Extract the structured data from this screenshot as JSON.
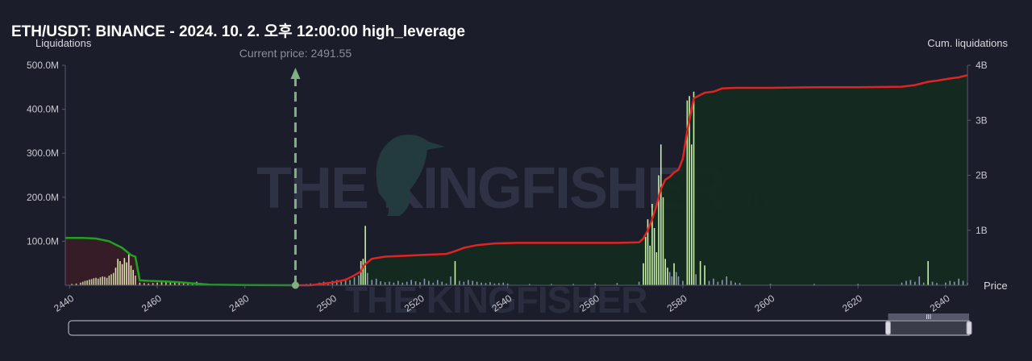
{
  "title": "ETH/USDT: BINANCE - 2024. 10. 2. 오후 12:00:00 high_leverage",
  "watermark": {
    "main": "THE KINGFISHER",
    "suffix": ".IO"
  },
  "chart_data": {
    "type": "bar",
    "ylabel": "Liquidations",
    "y2label": "Cum. liquidations",
    "xlabel": "Price",
    "current_price_label": "Current price: 2491.55",
    "current_price": 2491.55,
    "xlim": [
      2439,
      2645
    ],
    "ylim": [
      0,
      500
    ],
    "y2lim": [
      0,
      4
    ],
    "x_ticks": [
      "2440",
      "2460",
      "2480",
      "2500",
      "2520",
      "2540",
      "2560",
      "2580",
      "2600",
      "2620",
      "2640"
    ],
    "y_ticks": [
      "100.0M",
      "200.0M",
      "300.0M",
      "400.0M",
      "500.0M"
    ],
    "y2_ticks": [
      "1B",
      "2B",
      "3B",
      "4B"
    ],
    "colors": {
      "short_bar": "#c8f0a8",
      "long_bar": "#e3e3b0",
      "faint_bar": "#8e94b0",
      "cum_short": "#e02424",
      "cum_long": "#1fa31f",
      "fill_short": "#142a1f",
      "fill_long": "#3a1d26",
      "price_marker": "#7fb07f"
    },
    "long_bars": [
      [
        2440.5,
        3
      ],
      [
        2441.5,
        4
      ],
      [
        2442.5,
        6
      ],
      [
        2443,
        8
      ],
      [
        2443.5,
        10
      ],
      [
        2444,
        11
      ],
      [
        2444.5,
        13
      ],
      [
        2445,
        14
      ],
      [
        2445.5,
        16
      ],
      [
        2446,
        17
      ],
      [
        2446.5,
        15
      ],
      [
        2447,
        18
      ],
      [
        2447.5,
        20
      ],
      [
        2448,
        19
      ],
      [
        2448.5,
        17
      ],
      [
        2449,
        22
      ],
      [
        2449.5,
        25
      ],
      [
        2450,
        28
      ],
      [
        2450.5,
        40
      ],
      [
        2451,
        60
      ],
      [
        2451.5,
        55
      ],
      [
        2452,
        48
      ],
      [
        2452.5,
        62
      ],
      [
        2453,
        52
      ],
      [
        2453.5,
        70
      ],
      [
        2454,
        45
      ],
      [
        2454.5,
        35
      ],
      [
        2455,
        22
      ],
      [
        2456,
        6
      ],
      [
        2457,
        5
      ],
      [
        2458,
        4
      ],
      [
        2459,
        5
      ],
      [
        2460,
        6
      ],
      [
        2461,
        8
      ],
      [
        2462,
        10
      ],
      [
        2463,
        9
      ],
      [
        2464,
        7
      ],
      [
        2465,
        6
      ],
      [
        2466,
        5
      ],
      [
        2467,
        4
      ],
      [
        2468,
        3
      ],
      [
        2469,
        8
      ],
      [
        2470,
        5
      ]
    ],
    "short_bars": [
      [
        2492,
        2
      ],
      [
        2494,
        3
      ],
      [
        2495,
        4
      ],
      [
        2496,
        3
      ],
      [
        2497,
        6
      ],
      [
        2498,
        8
      ],
      [
        2499,
        5
      ],
      [
        2500,
        10
      ],
      [
        2501,
        12
      ],
      [
        2502,
        8
      ],
      [
        2503,
        15
      ],
      [
        2504,
        12
      ],
      [
        2505,
        18
      ],
      [
        2506,
        22
      ],
      [
        2506.5,
        55
      ],
      [
        2507,
        60
      ],
      [
        2507.5,
        135
      ],
      [
        2508,
        28
      ],
      [
        2509,
        12
      ],
      [
        2510,
        15
      ],
      [
        2511,
        9
      ],
      [
        2512,
        7
      ],
      [
        2513,
        8
      ],
      [
        2514,
        6
      ],
      [
        2515,
        10
      ],
      [
        2516,
        6
      ],
      [
        2517,
        8
      ],
      [
        2518,
        12
      ],
      [
        2519,
        9
      ],
      [
        2520,
        7
      ],
      [
        2521,
        15
      ],
      [
        2522,
        10
      ],
      [
        2523,
        6
      ],
      [
        2524,
        12
      ],
      [
        2525,
        8
      ],
      [
        2526,
        4
      ],
      [
        2527,
        20
      ],
      [
        2528,
        55
      ],
      [
        2529,
        10
      ],
      [
        2530,
        8
      ],
      [
        2531,
        12
      ],
      [
        2532,
        10
      ],
      [
        2533,
        8
      ],
      [
        2534,
        6
      ],
      [
        2535,
        5
      ],
      [
        2536,
        7
      ],
      [
        2537,
        4
      ],
      [
        2538,
        5
      ],
      [
        2539,
        6
      ],
      [
        2540,
        4
      ],
      [
        2545,
        3
      ],
      [
        2550,
        3
      ],
      [
        2555,
        3
      ],
      [
        2560,
        4
      ],
      [
        2565,
        5
      ],
      [
        2570,
        8
      ],
      [
        2571,
        50
      ],
      [
        2571.5,
        110
      ],
      [
        2572,
        150
      ],
      [
        2572.5,
        90
      ],
      [
        2573,
        185
      ],
      [
        2573.5,
        130
      ],
      [
        2574,
        75
      ],
      [
        2574.5,
        250
      ],
      [
        2575,
        320
      ],
      [
        2575.5,
        200
      ],
      [
        2576,
        60
      ],
      [
        2576.5,
        40
      ],
      [
        2577,
        30
      ],
      [
        2577.5,
        20
      ],
      [
        2578,
        50
      ],
      [
        2578.5,
        30
      ],
      [
        2579,
        20
      ],
      [
        2580,
        10
      ],
      [
        2581,
        420
      ],
      [
        2581.5,
        430
      ],
      [
        2582,
        320
      ],
      [
        2582.5,
        440
      ],
      [
        2583,
        25
      ],
      [
        2584,
        55
      ],
      [
        2585,
        45
      ],
      [
        2586,
        10
      ],
      [
        2587,
        15
      ],
      [
        2588,
        8
      ],
      [
        2589,
        12
      ],
      [
        2590,
        20
      ],
      [
        2591,
        10
      ],
      [
        2592,
        6
      ],
      [
        2593,
        5
      ],
      [
        2600,
        3
      ],
      [
        2610,
        3
      ],
      [
        2620,
        3
      ],
      [
        2630,
        6
      ],
      [
        2631,
        10
      ],
      [
        2632,
        12
      ],
      [
        2633,
        8
      ],
      [
        2634,
        20
      ],
      [
        2635,
        6
      ],
      [
        2636,
        55
      ],
      [
        2637,
        8
      ],
      [
        2638,
        5
      ],
      [
        2640,
        6
      ],
      [
        2641,
        10
      ],
      [
        2642,
        8
      ],
      [
        2643,
        15
      ],
      [
        2644,
        10
      ],
      [
        2645,
        6
      ]
    ],
    "cum_long": [
      [
        2439,
        0.86
      ],
      [
        2443,
        0.86
      ],
      [
        2446,
        0.85
      ],
      [
        2449,
        0.8
      ],
      [
        2452,
        0.68
      ],
      [
        2454,
        0.55
      ],
      [
        2455,
        0.52
      ],
      [
        2456,
        0.09
      ],
      [
        2458,
        0.08
      ],
      [
        2462,
        0.07
      ],
      [
        2466,
        0.05
      ],
      [
        2469,
        0.03
      ],
      [
        2472,
        0.01
      ],
      [
        2480,
        0.005
      ],
      [
        2491.55,
        0
      ]
    ],
    "cum_short": [
      [
        2491.55,
        0
      ],
      [
        2495,
        0.0
      ],
      [
        2497,
        0.02
      ],
      [
        2500,
        0.05
      ],
      [
        2503,
        0.1
      ],
      [
        2505,
        0.18
      ],
      [
        2506.5,
        0.25
      ],
      [
        2507,
        0.35
      ],
      [
        2509,
        0.48
      ],
      [
        2512,
        0.52
      ],
      [
        2515,
        0.53
      ],
      [
        2520,
        0.55
      ],
      [
        2526,
        0.57
      ],
      [
        2528,
        0.62
      ],
      [
        2530,
        0.68
      ],
      [
        2533,
        0.73
      ],
      [
        2537,
        0.76
      ],
      [
        2542,
        0.77
      ],
      [
        2560,
        0.77
      ],
      [
        2565,
        0.77
      ],
      [
        2570,
        0.78
      ],
      [
        2571,
        0.85
      ],
      [
        2572,
        1.0
      ],
      [
        2573,
        1.2
      ],
      [
        2574,
        1.45
      ],
      [
        2575,
        1.75
      ],
      [
        2576,
        1.92
      ],
      [
        2577,
        1.97
      ],
      [
        2578,
        2.05
      ],
      [
        2579,
        2.1
      ],
      [
        2580,
        2.3
      ],
      [
        2581,
        2.8
      ],
      [
        2581.5,
        3.0
      ],
      [
        2582,
        3.2
      ],
      [
        2582.5,
        3.4
      ],
      [
        2583,
        3.42
      ],
      [
        2585,
        3.5
      ],
      [
        2587,
        3.52
      ],
      [
        2589,
        3.58
      ],
      [
        2592,
        3.59
      ],
      [
        2600,
        3.59
      ],
      [
        2610,
        3.6
      ],
      [
        2620,
        3.6
      ],
      [
        2630,
        3.61
      ],
      [
        2633,
        3.64
      ],
      [
        2636,
        3.7
      ],
      [
        2638,
        3.72
      ],
      [
        2641,
        3.76
      ],
      [
        2643,
        3.78
      ],
      [
        2645,
        3.82
      ]
    ],
    "navigator_range": [
      0.91,
      1.0
    ],
    "navigator_handle_label": "III"
  }
}
